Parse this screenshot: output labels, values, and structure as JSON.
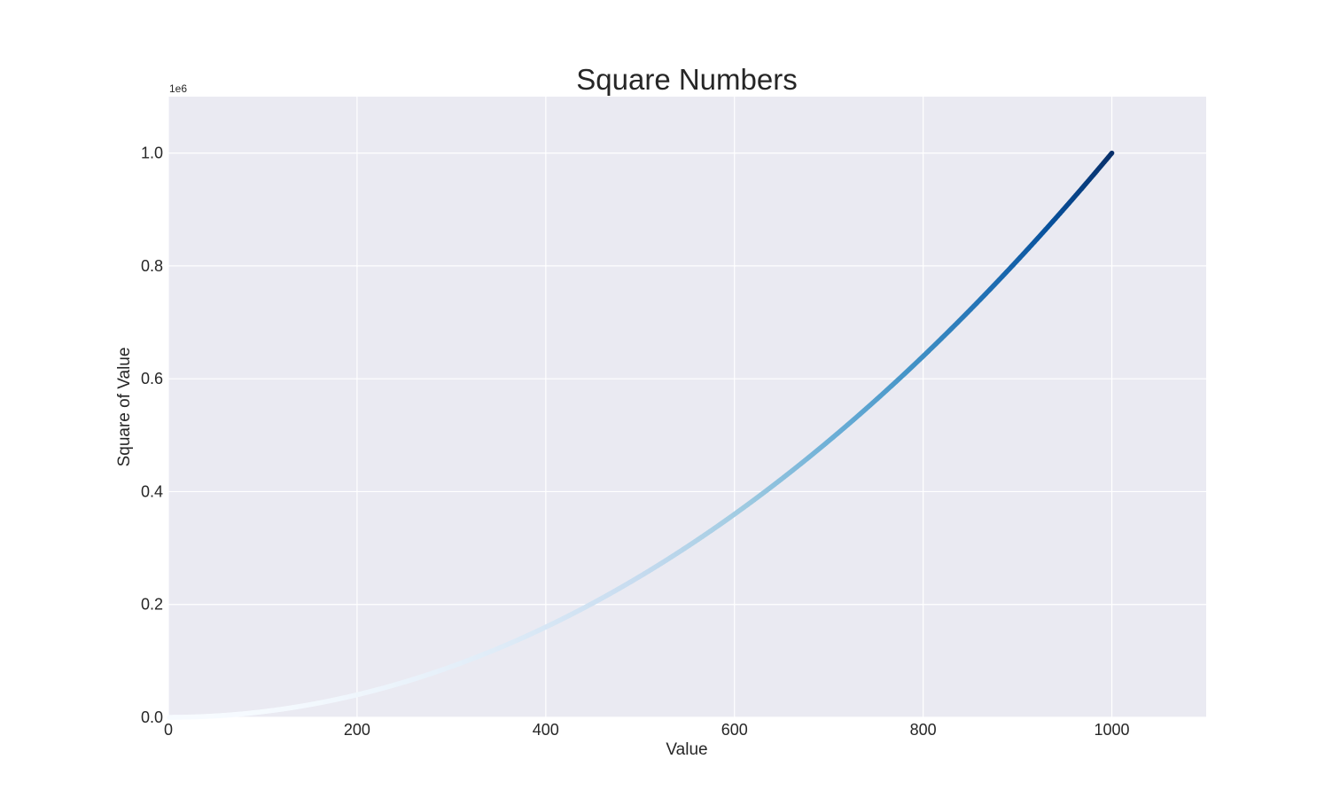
{
  "chart_data": {
    "type": "scatter",
    "title": "Square Numbers",
    "xlabel": "Value",
    "ylabel": "Square of Value",
    "y_offset_label": "1e6",
    "xlim": [
      0,
      1100
    ],
    "ylim": [
      0,
      1100000
    ],
    "xticks": [
      0,
      200,
      400,
      600,
      800,
      1000
    ],
    "xtick_labels": [
      "0",
      "200",
      "400",
      "600",
      "800",
      "1000"
    ],
    "yticks": [
      0,
      200000,
      400000,
      600000,
      800000,
      1000000
    ],
    "ytick_labels": [
      "0.0",
      "0.2",
      "0.4",
      "0.6",
      "0.8",
      "1.0"
    ],
    "grid": true,
    "colormap": "Blues",
    "colormap_stops": [
      "#f7fbff",
      "#deebf7",
      "#c6dbef",
      "#9ecae1",
      "#6baed6",
      "#4292c6",
      "#2171b5",
      "#08519c",
      "#08306b"
    ],
    "background_color": "#eaeaf2",
    "grid_color": "#ffffff",
    "series": [
      {
        "function": "x^2",
        "x_range": [
          1,
          1000
        ],
        "points": [
          [
            0,
            0
          ],
          [
            100,
            10000
          ],
          [
            200,
            40000
          ],
          [
            300,
            90000
          ],
          [
            400,
            160000
          ],
          [
            500,
            250000
          ],
          [
            600,
            360000
          ],
          [
            700,
            490000
          ],
          [
            800,
            640000
          ],
          [
            900,
            810000
          ],
          [
            1000,
            1000000
          ]
        ]
      }
    ]
  }
}
